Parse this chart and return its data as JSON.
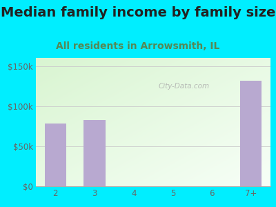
{
  "title": "Median family income by family size",
  "subtitle": "All residents in Arrowsmith, IL",
  "categories": [
    "2",
    "3",
    "4",
    "5",
    "6",
    "7+"
  ],
  "values": [
    78000,
    83000,
    0,
    0,
    0,
    132000
  ],
  "bar_color": "#b8a9d0",
  "background_outer": "#00eeff",
  "background_inner_left": "#d8f0d0",
  "background_inner_right": "#f0fff8",
  "ylim": [
    0,
    160000
  ],
  "yticks": [
    0,
    50000,
    100000,
    150000
  ],
  "ytick_labels": [
    "$0",
    "$50k",
    "$100k",
    "$150k"
  ],
  "title_fontsize": 14,
  "subtitle_fontsize": 10,
  "title_color": "#222222",
  "subtitle_color": "#558855",
  "tick_color": "#666666",
  "grid_color": "#cccccc",
  "watermark": "City-Data.com"
}
